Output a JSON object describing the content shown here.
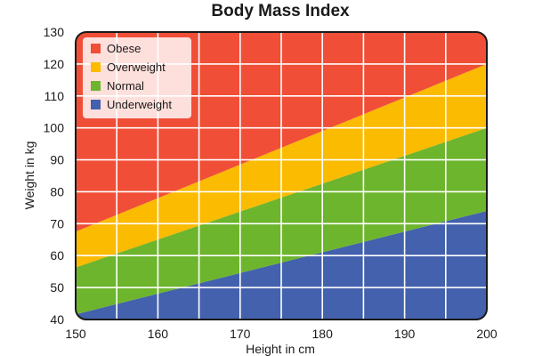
{
  "chart_data": {
    "type": "area",
    "title": "Body Mass Index",
    "xlabel": "Height in cm",
    "ylabel": "Weight in kg",
    "xlim": [
      150,
      200
    ],
    "ylim": [
      40,
      130
    ],
    "x_ticks": [
      150,
      160,
      170,
      180,
      190,
      200
    ],
    "y_ticks": [
      40,
      50,
      60,
      70,
      80,
      90,
      100,
      110,
      120,
      130
    ],
    "grid": true,
    "legend_position": "top-left",
    "x": [
      150,
      200
    ],
    "series": [
      {
        "name": "Underweight",
        "color": "#4361ad",
        "lower": [
          40,
          40
        ],
        "upper": [
          41.6,
          74
        ]
      },
      {
        "name": "Normal",
        "color": "#6db52d",
        "lower": [
          41.6,
          74
        ],
        "upper": [
          56.3,
          100
        ]
      },
      {
        "name": "Overweight",
        "color": "#fbbb00",
        "lower": [
          56.3,
          100
        ],
        "upper": [
          67.5,
          120
        ]
      },
      {
        "name": "Obese",
        "color": "#f04e37",
        "lower": [
          67.5,
          120
        ],
        "upper": [
          130,
          130
        ]
      }
    ],
    "legend_order": [
      "Obese",
      "Overweight",
      "Normal",
      "Underweight"
    ]
  }
}
